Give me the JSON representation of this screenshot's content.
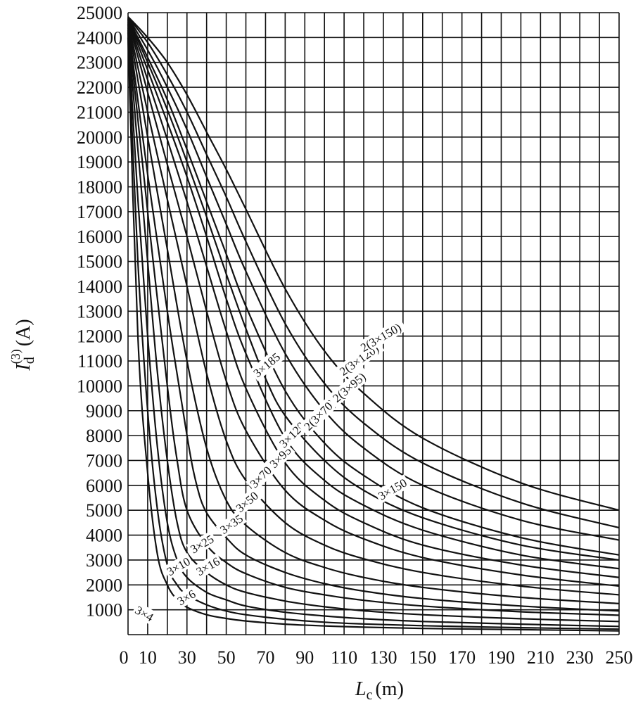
{
  "chart_data": {
    "type": "line",
    "title": "",
    "xlabel": "L",
    "xlabel_sub": "c",
    "xlabel_unit": "(m)",
    "ylabel": "I",
    "ylabel_sub": "d",
    "ylabel_sup": "(3)",
    "ylabel_unit": "(A)",
    "xlim": [
      0,
      250
    ],
    "ylim": [
      0,
      25000
    ],
    "grid": true,
    "x_grid_step": 10,
    "y_grid_step": 1000,
    "x_ticks": [
      0,
      10,
      30,
      50,
      70,
      90,
      110,
      130,
      150,
      170,
      190,
      210,
      230,
      250
    ],
    "x_tick_labels": [
      "0",
      "10",
      "30",
      "50",
      "70",
      "90",
      "110",
      "130",
      "150",
      "170",
      "190",
      "210",
      "230",
      "250"
    ],
    "y_ticks": [
      1000,
      2000,
      3000,
      4000,
      5000,
      6000,
      7000,
      8000,
      9000,
      10000,
      11000,
      12000,
      13000,
      14000,
      15000,
      16000,
      17000,
      18000,
      19000,
      20000,
      21000,
      22000,
      23000,
      24000,
      25000
    ],
    "y_tick_labels": [
      "1000",
      "2000",
      "3000",
      "4000",
      "5000",
      "6000",
      "7000",
      "8000",
      "9000",
      "10000",
      "11000",
      "12000",
      "13000",
      "14000",
      "15000",
      "16000",
      "17000",
      "18000",
      "19000",
      "20000",
      "21000",
      "22000",
      "23000",
      "24000",
      "25000"
    ],
    "series": [
      {
        "name": "3×4",
        "x": [
          0,
          5,
          10,
          15,
          20,
          25,
          30,
          40,
          50,
          60,
          80,
          100,
          120,
          150,
          200,
          250
        ],
        "y": [
          24000,
          12000,
          6500,
          3200,
          2000,
          1400,
          1100,
          800,
          650,
          550,
          420,
          350,
          300,
          250,
          200,
          150
        ]
      },
      {
        "name": "3×6",
        "x": [
          0,
          5,
          10,
          15,
          20,
          25,
          30,
          40,
          50,
          60,
          80,
          100,
          120,
          150,
          200,
          250
        ],
        "y": [
          24200,
          15000,
          9000,
          5000,
          2800,
          2000,
          1600,
          1200,
          950,
          800,
          620,
          500,
          430,
          360,
          280,
          220
        ]
      },
      {
        "name": "3×10",
        "x": [
          0,
          5,
          10,
          15,
          20,
          25,
          30,
          40,
          50,
          60,
          80,
          100,
          120,
          150,
          200,
          250
        ],
        "y": [
          24300,
          17500,
          12000,
          7500,
          4500,
          3000,
          2300,
          1700,
          1400,
          1150,
          900,
          750,
          640,
          530,
          420,
          330
        ]
      },
      {
        "name": "3×16",
        "x": [
          0,
          5,
          10,
          15,
          20,
          25,
          30,
          40,
          50,
          60,
          80,
          100,
          120,
          150,
          200,
          250
        ],
        "y": [
          24400,
          19500,
          15000,
          10500,
          7000,
          4500,
          3300,
          2500,
          2000,
          1700,
          1350,
          1120,
          960,
          800,
          640,
          530
        ]
      },
      {
        "name": "3×25",
        "x": [
          0,
          10,
          20,
          25,
          30,
          40,
          50,
          60,
          80,
          100,
          120,
          150,
          200,
          250
        ],
        "y": [
          24500,
          17000,
          10000,
          7000,
          5000,
          3600,
          2900,
          2450,
          1900,
          1600,
          1380,
          1150,
          920,
          780
        ]
      },
      {
        "name": "3×35",
        "x": [
          0,
          10,
          20,
          30,
          35,
          40,
          50,
          60,
          80,
          100,
          120,
          150,
          200,
          250
        ],
        "y": [
          24550,
          18500,
          13000,
          8000,
          6000,
          4900,
          3900,
          3200,
          2500,
          2050,
          1750,
          1450,
          1150,
          950
        ]
      },
      {
        "name": "3×50",
        "x": [
          0,
          10,
          20,
          30,
          40,
          50,
          60,
          80,
          100,
          120,
          150,
          200,
          250
        ],
        "y": [
          24600,
          20000,
          15500,
          11000,
          7500,
          5400,
          4400,
          3300,
          2700,
          2300,
          1900,
          1500,
          1250
        ]
      },
      {
        "name": "3×70",
        "x": [
          0,
          10,
          20,
          30,
          40,
          50,
          60,
          80,
          100,
          120,
          150,
          200,
          250
        ],
        "y": [
          24650,
          21000,
          17500,
          14000,
          10500,
          7800,
          6200,
          4500,
          3600,
          3050,
          2500,
          1950,
          1600
        ]
      },
      {
        "name": "3×95",
        "x": [
          0,
          10,
          20,
          30,
          40,
          50,
          60,
          80,
          100,
          120,
          150,
          200,
          250
        ],
        "y": [
          24700,
          21800,
          18900,
          16000,
          13000,
          10200,
          8200,
          5800,
          4600,
          3850,
          3100,
          2400,
          1950
        ]
      },
      {
        "name": "3×120",
        "x": [
          0,
          10,
          20,
          30,
          40,
          50,
          60,
          80,
          100,
          120,
          150,
          200,
          250
        ],
        "y": [
          24720,
          22300,
          19900,
          17400,
          14800,
          12200,
          9900,
          6900,
          5400,
          4500,
          3600,
          2800,
          2300
        ]
      },
      {
        "name": "3×150",
        "x": [
          0,
          10,
          20,
          30,
          40,
          50,
          60,
          80,
          100,
          120,
          150,
          200,
          250
        ],
        "y": [
          24740,
          22700,
          20600,
          18400,
          16000,
          13500,
          11300,
          7900,
          6200,
          5200,
          4200,
          3200,
          2650
        ]
      },
      {
        "name": "3×185",
        "x": [
          0,
          10,
          20,
          30,
          40,
          50,
          60,
          70,
          80,
          100,
          120,
          150,
          200,
          250
        ],
        "y": [
          24760,
          23000,
          21100,
          19000,
          16800,
          14500,
          12300,
          10300,
          8800,
          7000,
          5800,
          4700,
          3600,
          3000
        ]
      },
      {
        "name": "2(3×70)",
        "x": [
          0,
          10,
          20,
          30,
          40,
          50,
          60,
          80,
          100,
          120,
          150,
          200,
          250
        ],
        "y": [
          24780,
          23200,
          21500,
          19500,
          17400,
          15300,
          13200,
          9800,
          7700,
          6400,
          5100,
          3900,
          3200
        ]
      },
      {
        "name": "2(3×95)",
        "x": [
          0,
          10,
          20,
          30,
          40,
          50,
          60,
          80,
          100,
          120,
          150,
          200,
          250
        ],
        "y": [
          24800,
          23500,
          22000,
          20300,
          18400,
          16500,
          14600,
          11300,
          9000,
          7500,
          6000,
          4600,
          3800
        ]
      },
      {
        "name": "2(3×120)",
        "x": [
          0,
          10,
          20,
          30,
          40,
          50,
          60,
          80,
          100,
          120,
          150,
          200,
          250
        ],
        "y": [
          24820,
          23800,
          22500,
          21000,
          19300,
          17600,
          15800,
          12500,
          10100,
          8500,
          6900,
          5300,
          4300
        ]
      },
      {
        "name": "2(3×150)",
        "x": [
          0,
          10,
          20,
          30,
          40,
          50,
          60,
          80,
          100,
          120,
          150,
          200,
          250
        ],
        "y": [
          24840,
          24000,
          23000,
          21700,
          20200,
          18700,
          17100,
          13900,
          11400,
          9700,
          7900,
          6100,
          5000
        ]
      }
    ],
    "annotations": [
      {
        "text": "3×4",
        "x": 8,
        "y": 800,
        "angle": 30
      },
      {
        "text": "3×6",
        "x": 30,
        "y": 1450,
        "angle": -30
      },
      {
        "text": "3×10",
        "x": 26,
        "y": 2700,
        "angle": -30
      },
      {
        "text": "3×16",
        "x": 41,
        "y": 2700,
        "angle": -30
      },
      {
        "text": "3×25",
        "x": 38,
        "y": 3600,
        "angle": -30
      },
      {
        "text": "3×35",
        "x": 53,
        "y": 4400,
        "angle": -35
      },
      {
        "text": "3×50",
        "x": 61,
        "y": 5300,
        "angle": -40
      },
      {
        "text": "3×70",
        "x": 68,
        "y": 6300,
        "angle": -45
      },
      {
        "text": "3×95",
        "x": 78,
        "y": 7100,
        "angle": -45
      },
      {
        "text": "3×120",
        "x": 84,
        "y": 8000,
        "angle": -45
      },
      {
        "text": "3×150",
        "x": 135,
        "y": 5800,
        "angle": -30
      },
      {
        "text": "3×185",
        "x": 71,
        "y": 10800,
        "angle": -40
      },
      {
        "text": "2(3×70)",
        "x": 98,
        "y": 8800,
        "angle": -45
      },
      {
        "text": "2(3×95)",
        "x": 113,
        "y": 9900,
        "angle": -40
      },
      {
        "text": "2(3×120)",
        "x": 118,
        "y": 11000,
        "angle": -35
      },
      {
        "text": "2(3×150)",
        "x": 129,
        "y": 11900,
        "angle": -30
      }
    ]
  }
}
